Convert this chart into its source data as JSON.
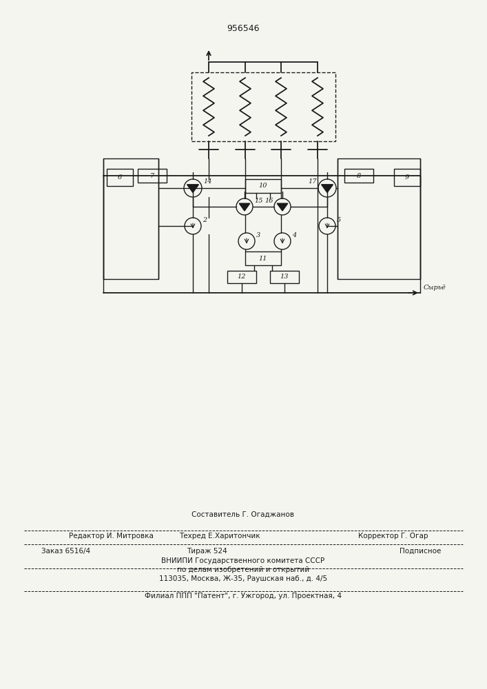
{
  "title": "956546",
  "bg_color": "#f5f5f0",
  "line_color": "#1a1a1a",
  "footer": {
    "line1_left": "Редактор И. Митровка",
    "line1_mid": "Составитель Г. Огаджанов",
    "line1_mid2": "Техред Е.Харитончик",
    "line1_right": "Корректор Г. Огар",
    "line2_left": "Заказ 6516/4",
    "line2_mid": "Тираж 524",
    "line2_right": "Подписное",
    "line3": "ВНИИПИ Государственного комитета СССР",
    "line4": "по делам изобретений и открытий",
    "line5": "113035, Москва, Ж-35, Раушская наб., д. 4/5",
    "line6": "Филиал ППП \"Патент\", г. Ужгород, ул. Проектная, 4"
  }
}
